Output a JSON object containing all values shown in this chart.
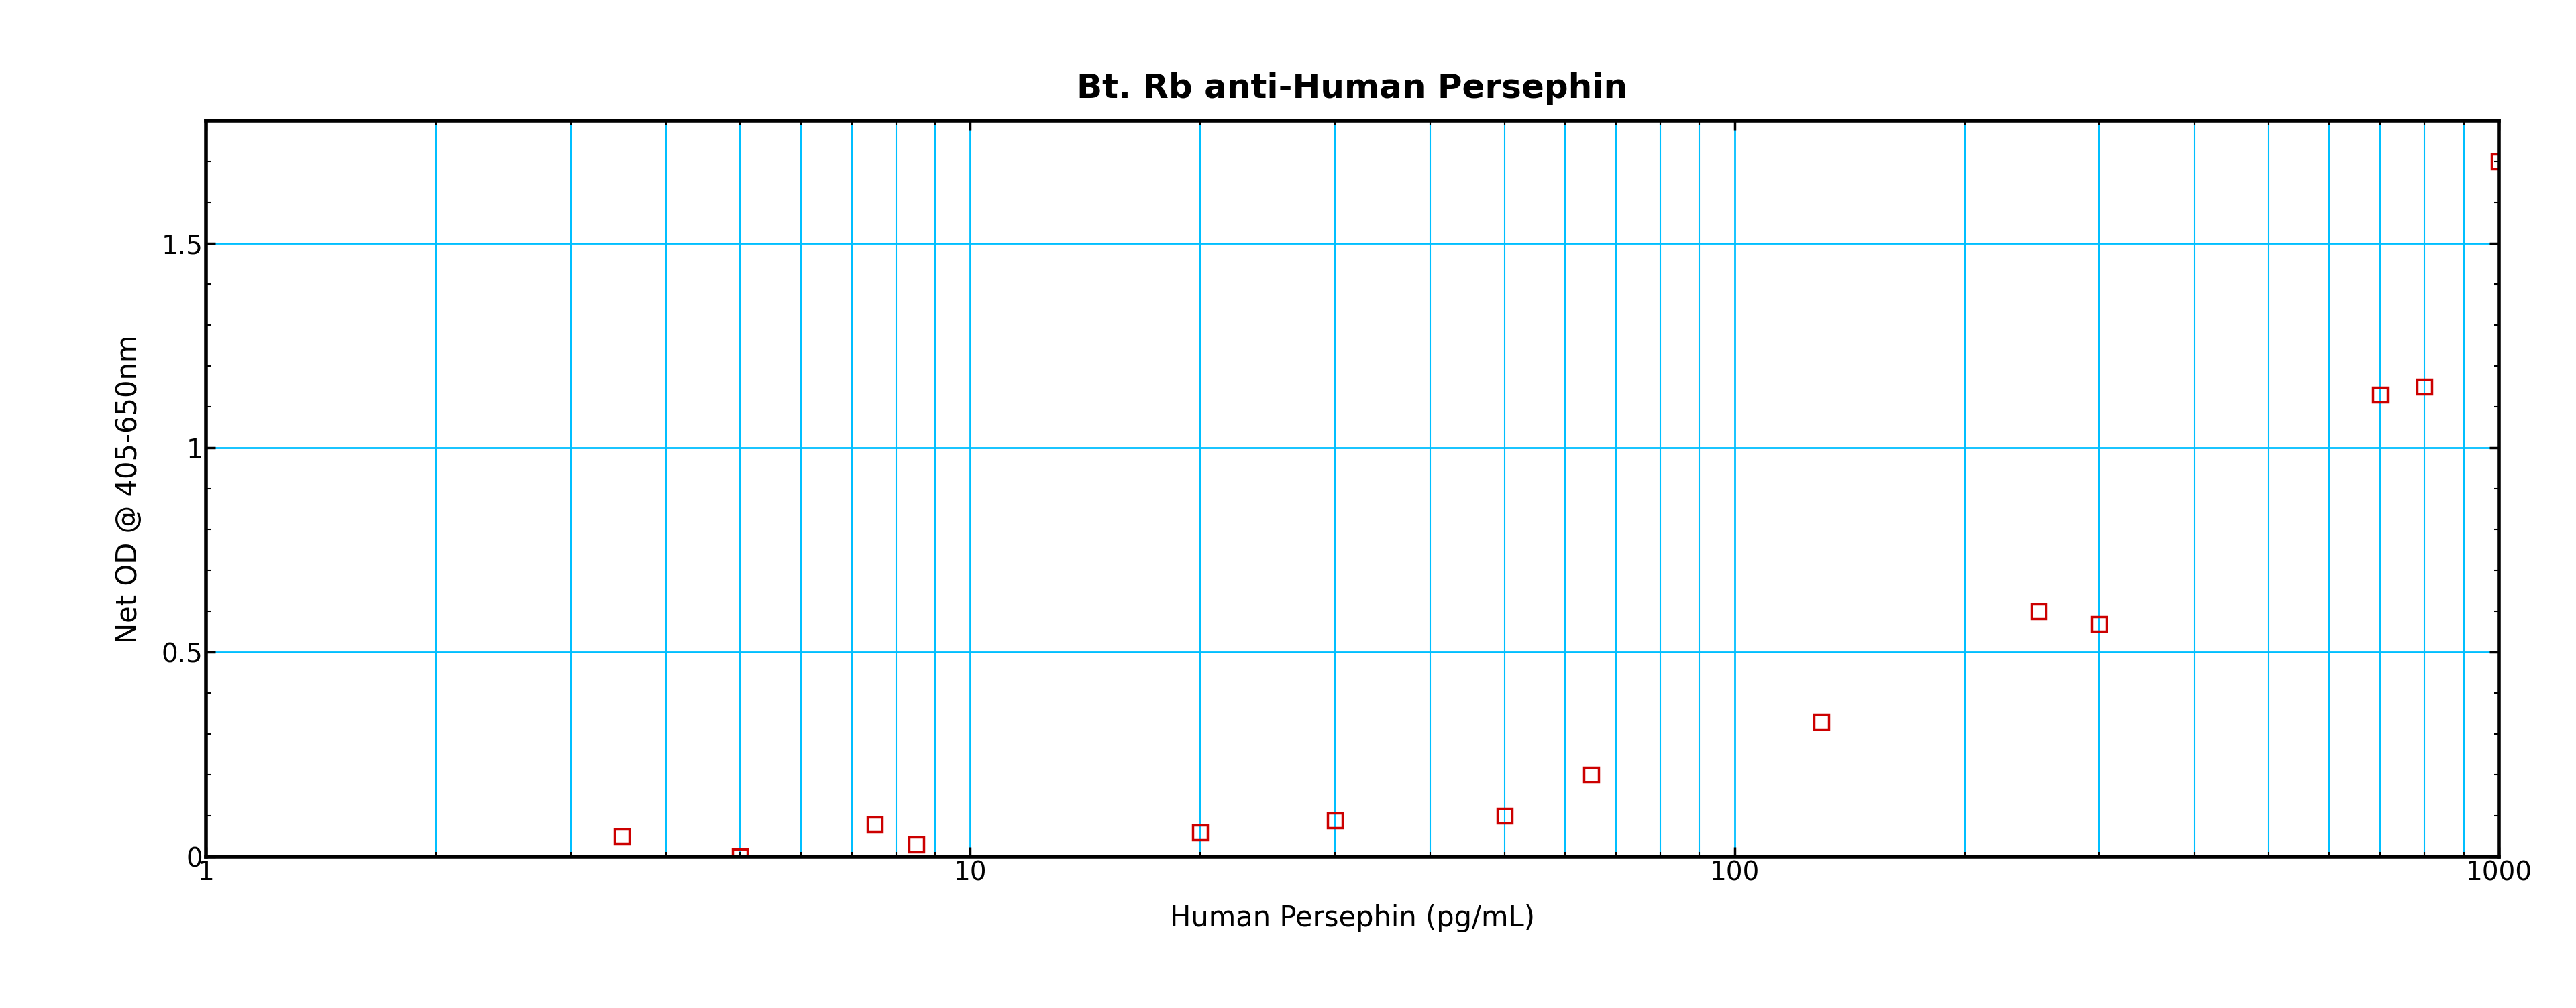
{
  "title": "Bt. Rb anti-Human Persephin",
  "xlabel": "Human Persephin (pg/mL)",
  "ylabel": "Net OD @ 405-650nm",
  "xlim": [
    1,
    1000
  ],
  "ylim": [
    0,
    1.8
  ],
  "yticks": [
    0,
    0.5,
    1.0,
    1.5
  ],
  "data_x": [
    3.5,
    5.0,
    7.5,
    8.5,
    20.0,
    30.0,
    50.0,
    65.0,
    130.0,
    250.0,
    300.0,
    700.0,
    800.0,
    1000.0
  ],
  "data_y": [
    0.05,
    0.0,
    0.08,
    0.03,
    0.06,
    0.09,
    0.1,
    0.2,
    0.33,
    0.6,
    0.57,
    1.13,
    1.15,
    1.7
  ],
  "line_color": "#cc0000",
  "marker_color": "#cc0000",
  "grid_color": "#00bfff",
  "background_color": "#ffffff",
  "title_fontsize": 36,
  "label_fontsize": 30,
  "tick_fontsize": 28,
  "marker_size": 16,
  "line_width": 3.0,
  "spine_linewidth": 4.0
}
